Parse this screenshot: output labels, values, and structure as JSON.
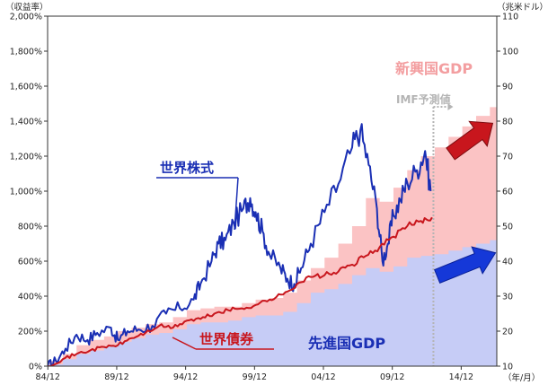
{
  "chart_data": {
    "type": "line",
    "left_unit": "（収益率）",
    "right_unit": "（兆米ドル）",
    "x_unit": "（年/月）",
    "x_ticks": [
      "84/12",
      "89/12",
      "94/12",
      "99/12",
      "04/12",
      "09/12",
      "14/12"
    ],
    "left_ticks": [
      "0%",
      "200%",
      "400%",
      "600%",
      "800%",
      "1,000%",
      "1,200%",
      "1,400%",
      "1,600%",
      "1,800%",
      "2,000%"
    ],
    "right_ticks": [
      "10",
      "20",
      "30",
      "40",
      "50",
      "60",
      "70",
      "80",
      "90",
      "100",
      "110"
    ],
    "left_ylim": [
      0,
      2000
    ],
    "right_ylim": [
      10,
      110
    ],
    "xlim": [
      1984.9,
      2017.5
    ],
    "forecast_start": 2012.9,
    "labels": {
      "stock": "世界株式",
      "bond": "世界債券",
      "advanced_gdp": "先進国GDP",
      "emerging_gdp": "新興国GDP",
      "imf": "IMF予測値"
    },
    "colors": {
      "stock": "#1a2fb4",
      "bond": "#c8161d",
      "advanced_fill": "#c6ccf6",
      "emerging_fill": "#fbc3c4",
      "advanced_arrow": "#1538d8",
      "emerging_arrow": "#c8161d"
    },
    "gdp": {
      "year": [
        1984,
        1985,
        1986,
        1987,
        1988,
        1989,
        1990,
        1991,
        1992,
        1993,
        1994,
        1995,
        1996,
        1997,
        1998,
        1999,
        2000,
        2001,
        2002,
        2003,
        2004,
        2005,
        2006,
        2007,
        2008,
        2009,
        2010,
        2011,
        2012,
        2013,
        2014,
        2015,
        2016,
        2017
      ],
      "advanced": [
        10,
        10.5,
        12,
        13.5,
        14.5,
        15.5,
        17,
        18,
        19,
        19.5,
        20.5,
        22,
        22.5,
        22.5,
        23,
        24,
        24.5,
        24.5,
        25.5,
        28,
        31,
        32,
        33.5,
        36,
        38,
        37,
        38.5,
        41,
        41.5,
        42,
        43,
        44,
        45,
        46
      ],
      "total": [
        10,
        11.5,
        13.5,
        16,
        17.5,
        18.5,
        20,
        21,
        22,
        22.5,
        24,
        26,
        26.5,
        27,
        27,
        28,
        29,
        29.5,
        31,
        34.5,
        38,
        41,
        45,
        50,
        58,
        57,
        61,
        66,
        70,
        72.5,
        75.5,
        78.5,
        81.5,
        84
      ]
    },
    "series": [
      {
        "name": "世界株式",
        "x": [
          1984.9,
          1985.5,
          1986.2,
          1987.0,
          1987.8,
          1988.5,
          1989.5,
          1990.0,
          1990.7,
          1991.5,
          1992.5,
          1993.5,
          1994.5,
          1995.5,
          1996.0,
          1996.8,
          1997.3,
          1997.8,
          1998.4,
          1999.1,
          1999.6,
          2000.0,
          2000.5,
          2001.0,
          2001.8,
          2002.3,
          2002.8,
          2003.3,
          2004.0,
          2005.0,
          2006.0,
          2007.0,
          2007.6,
          2008.2,
          2008.8,
          2009.2,
          2009.6,
          2010.0,
          2010.5,
          2011.0,
          2011.7,
          2012.3,
          2012.7
        ],
        "y": [
          0,
          30,
          100,
          180,
          150,
          190,
          220,
          150,
          200,
          210,
          230,
          300,
          330,
          380,
          470,
          600,
          700,
          720,
          820,
          900,
          960,
          880,
          770,
          640,
          560,
          500,
          470,
          560,
          700,
          880,
          1040,
          1250,
          1350,
          1150,
          900,
          600,
          700,
          860,
          950,
          1050,
          1120,
          1230,
          1000
        ]
      },
      {
        "name": "世界債券",
        "x": [
          1984.9,
          1986.0,
          1987.0,
          1988.0,
          1989.0,
          1990.0,
          1991.0,
          1992.0,
          1993.0,
          1994.0,
          1995.0,
          1996.0,
          1997.0,
          1998.0,
          1999.0,
          2000.0,
          2001.0,
          2002.0,
          2003.0,
          2004.0,
          2005.0,
          2006.0,
          2007.0,
          2008.0,
          2009.0,
          2010.0,
          2011.0,
          2012.0,
          2012.8
        ],
        "y": [
          0,
          40,
          70,
          90,
          110,
          120,
          160,
          190,
          230,
          220,
          260,
          270,
          300,
          320,
          330,
          350,
          380,
          410,
          470,
          510,
          520,
          540,
          580,
          630,
          680,
          740,
          800,
          830,
          850
        ]
      }
    ]
  }
}
